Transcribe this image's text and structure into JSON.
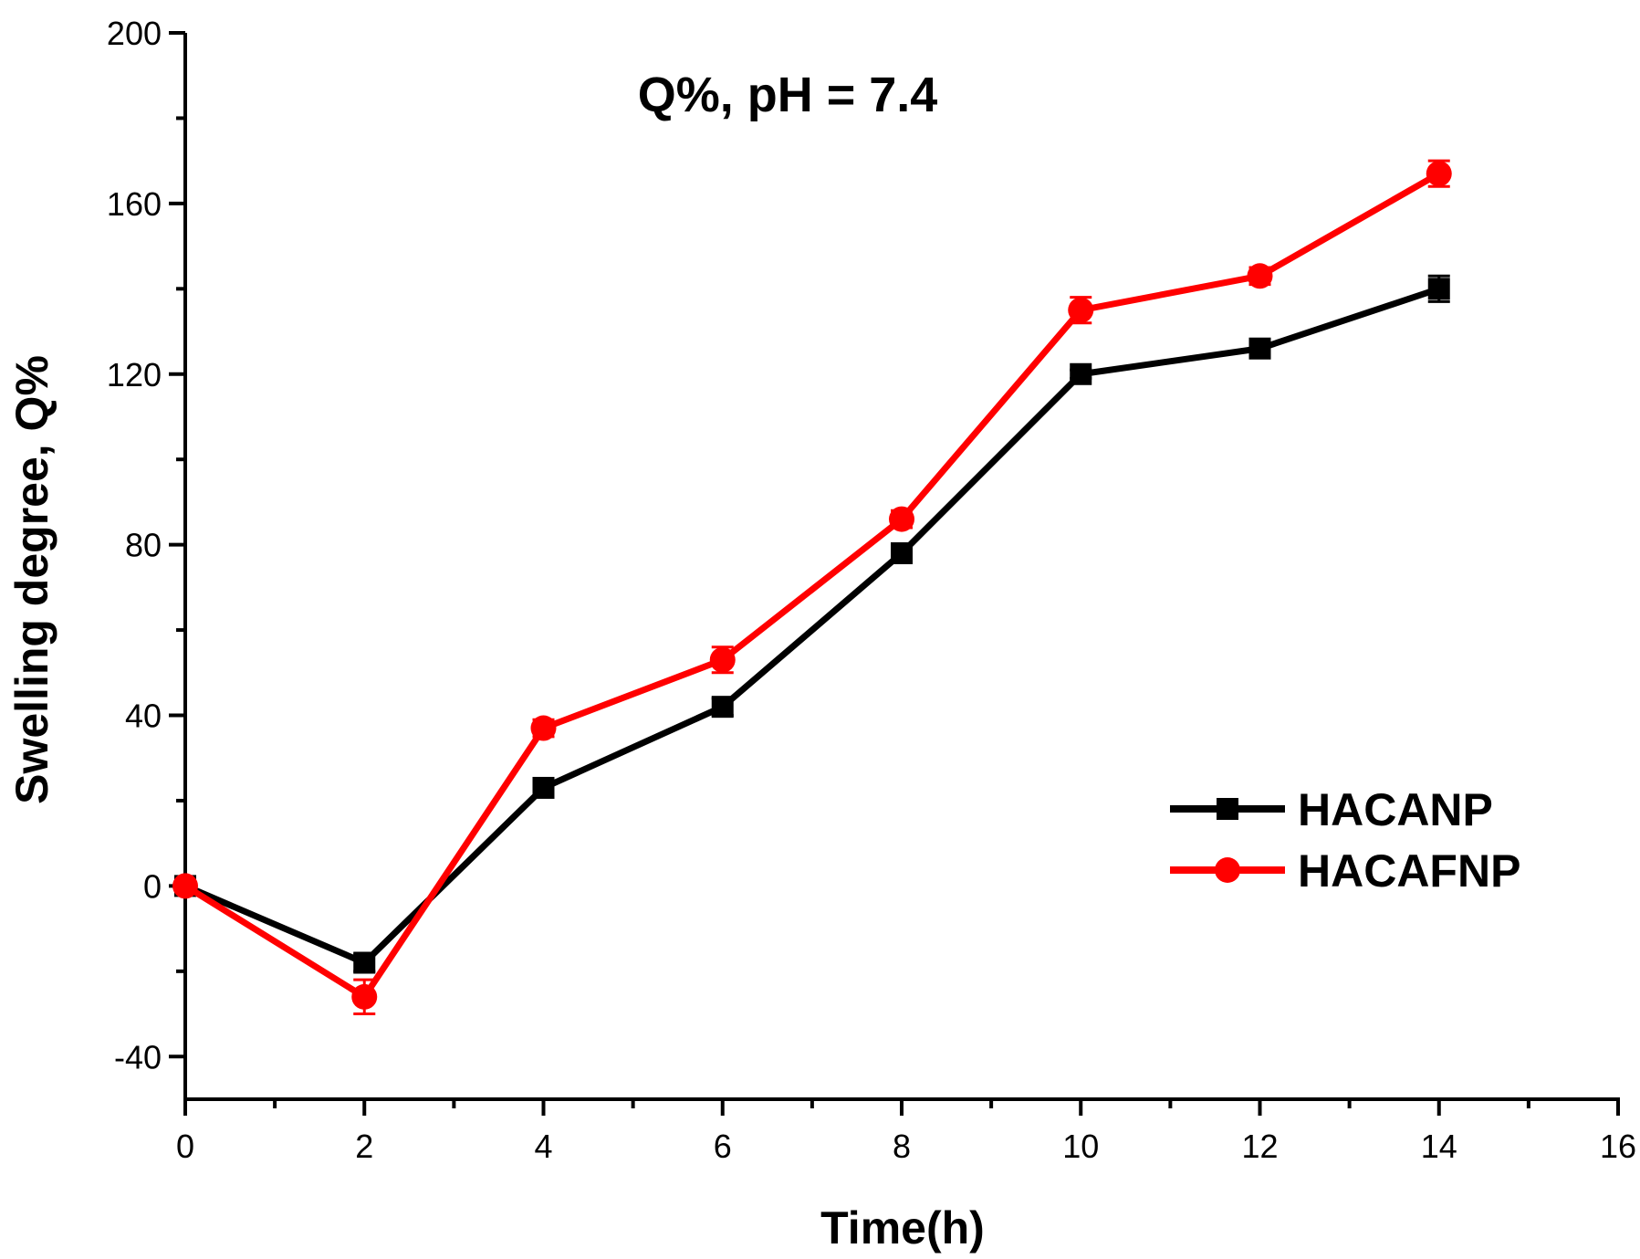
{
  "chart_data": {
    "type": "line",
    "title": "Q%, pH = 7.4",
    "xlabel": "Time(h)",
    "ylabel": "Swelling degree, Q%",
    "xlim": [
      0,
      16
    ],
    "ylim": [
      -50,
      200
    ],
    "x_ticks": [
      "0",
      "2",
      "4",
      "6",
      "8",
      "10",
      "12",
      "14",
      "16"
    ],
    "y_ticks": [
      "-40",
      "0",
      "40",
      "80",
      "120",
      "160",
      "200"
    ],
    "x": [
      0,
      2,
      4,
      6,
      8,
      10,
      12,
      14
    ],
    "series": [
      {
        "name": "HACANP",
        "color": "#000000",
        "marker": "square",
        "values": [
          0,
          -18,
          23,
          42,
          78,
          120,
          126,
          140
        ],
        "errors": [
          1,
          2,
          2,
          2,
          2,
          1,
          2,
          3
        ]
      },
      {
        "name": "HACAFNP",
        "color": "#ff0000",
        "marker": "circle",
        "values": [
          0,
          -26,
          37,
          53,
          86,
          135,
          143,
          167
        ],
        "errors": [
          1,
          4,
          2,
          3,
          2,
          3,
          2,
          3
        ]
      }
    ],
    "legend_position": "right-middle",
    "grid": false
  }
}
